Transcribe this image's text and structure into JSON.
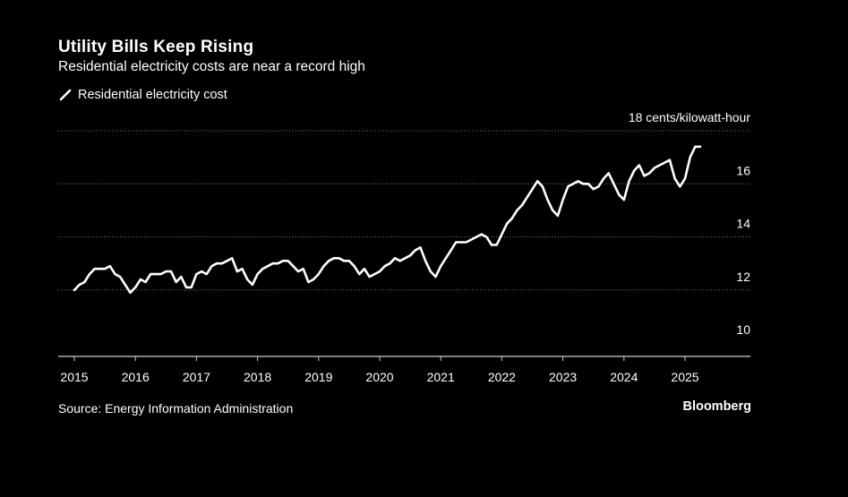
{
  "header": {
    "title": "Utility Bills Keep Rising",
    "subtitle": "Residential electricity costs are near a record high"
  },
  "legend": {
    "label": "Residential electricity cost"
  },
  "footer": {
    "source": "Source: Energy Information Administration",
    "brand": "Bloomberg"
  },
  "colors": {
    "background": "#000000",
    "line": "#ffffff",
    "gridline": "#777777",
    "text": "#ffffff"
  },
  "chart_data": {
    "type": "line",
    "title": "Utility Bills Keep Rising",
    "subtitle": "Residential electricity costs are near a record high",
    "ylabel": "cents/kilowatt-hour",
    "y_unit_label": "18 cents/kilowatt-hour",
    "xlim": [
      2014.8,
      2025.75
    ],
    "ylim": [
      9.5,
      18.0
    ],
    "y_ticks": [
      10,
      12,
      14,
      16,
      18
    ],
    "y_tick_labels": [
      "10",
      "12",
      "14",
      "16",
      "18 cents/kilowatt-hour"
    ],
    "x_ticks": [
      2015,
      2016,
      2017,
      2018,
      2019,
      2020,
      2021,
      2022,
      2023,
      2024,
      2025
    ],
    "x_tick_labels": [
      "2015",
      "2016",
      "2017",
      "2018",
      "2019",
      "2020",
      "2021",
      "2022",
      "2023",
      "2024",
      "2025"
    ],
    "grid": "horizontal dotted",
    "legend_position": "top-left",
    "series": [
      {
        "name": "Residential electricity cost",
        "x_start": 2015.0,
        "step": 0.0833333,
        "values": [
          12.0,
          12.2,
          12.3,
          12.6,
          12.8,
          12.8,
          12.8,
          12.9,
          12.6,
          12.5,
          12.2,
          11.9,
          12.1,
          12.4,
          12.3,
          12.6,
          12.6,
          12.6,
          12.7,
          12.7,
          12.3,
          12.5,
          12.1,
          12.1,
          12.6,
          12.7,
          12.6,
          12.9,
          13.0,
          13.0,
          13.1,
          13.2,
          12.7,
          12.8,
          12.4,
          12.2,
          12.6,
          12.8,
          12.9,
          13.0,
          13.0,
          13.1,
          13.1,
          12.9,
          12.7,
          12.8,
          12.3,
          12.4,
          12.6,
          12.9,
          13.1,
          13.2,
          13.2,
          13.1,
          13.1,
          12.9,
          12.6,
          12.8,
          12.5,
          12.6,
          12.7,
          12.9,
          13.0,
          13.2,
          13.1,
          13.2,
          13.3,
          13.5,
          13.6,
          13.1,
          12.7,
          12.5,
          12.9,
          13.2,
          13.5,
          13.8,
          13.8,
          13.8,
          13.9,
          14.0,
          14.1,
          14.0,
          13.7,
          13.7,
          14.1,
          14.5,
          14.7,
          15.0,
          15.2,
          15.5,
          15.8,
          16.1,
          15.9,
          15.4,
          15.0,
          14.8,
          15.4,
          15.9,
          16.0,
          16.1,
          16.0,
          16.0,
          15.8,
          15.9,
          16.2,
          16.4,
          16.0,
          15.6,
          15.4,
          16.1,
          16.5,
          16.7,
          16.3,
          16.4,
          16.6,
          16.7,
          16.8,
          16.9,
          16.2,
          15.9,
          16.2,
          17.0,
          17.4,
          17.4
        ]
      }
    ]
  }
}
